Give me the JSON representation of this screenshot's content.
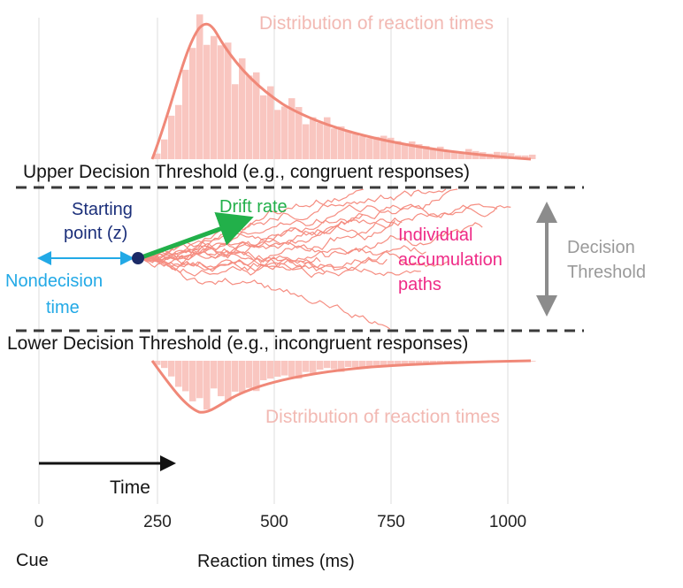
{
  "labels": {
    "rt_top": "Distribution of reaction times",
    "rt_bottom": "Distribution of reaction times",
    "upper_threshold": "Upper Decision Threshold (e.g., congruent responses)",
    "lower_threshold": "Lower Decision Threshold (e.g., incongruent responses)",
    "starting_point_line1": "Starting",
    "starting_point_line2": "point (z)",
    "drift_rate": "Drift rate",
    "nondecision_line1": "Nondecision",
    "nondecision_line2": "time",
    "paths_line1": "Individual",
    "paths_line2": "accumulation",
    "paths_line3": "paths",
    "threshold_line1": "Decision",
    "threshold_line2": "Threshold",
    "time": "Time",
    "cue": "Cue",
    "xlabel": "Reaction times (ms)"
  },
  "axis": {
    "ticks": [
      "0",
      "250",
      "500",
      "750",
      "1000"
    ]
  },
  "colors": {
    "distribution": "#f08878",
    "histogram": "#f9c6c0",
    "paths": "#f47a6c",
    "starting_point": "#1b2a66",
    "drift_arrow": "#22b04a",
    "nondecision_arrow": "#22a9e6",
    "threshold_arrow": "#8c8c8c",
    "threshold_line": "#3a3a3a",
    "gridline": "#e8e8e8"
  }
}
